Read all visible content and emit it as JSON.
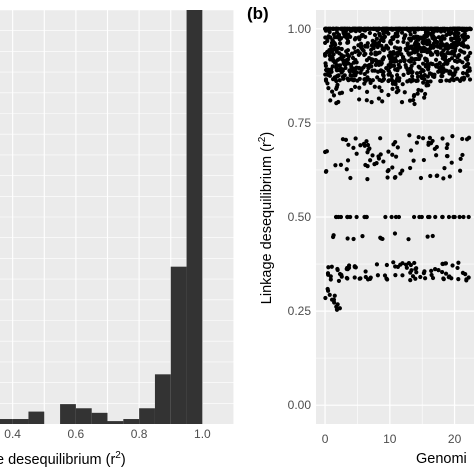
{
  "colors": {
    "panel_bg": "#ebebeb",
    "grid_major": "#ffffff",
    "bar_fill": "#333333",
    "point": "#000000",
    "tick_text": "#4d4d4d"
  },
  "chart_data": [
    {
      "type": "bar",
      "panel": "a",
      "xlabel_visible": "e desequilibrium (r",
      "xlabel_superscript": "2",
      "xlabel_close": ")",
      "x_ticks": [
        "0.4",
        "0.6",
        "0.8",
        "1.0"
      ],
      "x_tick_values": [
        0.4,
        0.6,
        0.8,
        1.0
      ],
      "xlim": [
        0.36,
        1.1
      ],
      "ylim": [
        0,
        1
      ],
      "bin_width": 0.05,
      "bins": [
        {
          "x": 0.35,
          "height": 0.012
        },
        {
          "x": 0.4,
          "height": 0.012
        },
        {
          "x": 0.45,
          "height": 0.03
        },
        {
          "x": 0.5,
          "height": 0.0
        },
        {
          "x": 0.55,
          "height": 0.048
        },
        {
          "x": 0.6,
          "height": 0.038
        },
        {
          "x": 0.65,
          "height": 0.027
        },
        {
          "x": 0.7,
          "height": 0.007
        },
        {
          "x": 0.75,
          "height": 0.012
        },
        {
          "x": 0.8,
          "height": 0.038
        },
        {
          "x": 0.85,
          "height": 0.12
        },
        {
          "x": 0.9,
          "height": 0.38
        },
        {
          "x": 0.95,
          "height": 1.0
        }
      ],
      "grid": true
    },
    {
      "type": "scatter",
      "panel": "b",
      "panel_label": "(b)",
      "ylabel_main": "Linkage desequilibrium (r",
      "ylabel_superscript": "2",
      "ylabel_close": ")",
      "xlabel_visible": "Genomi",
      "y_ticks": [
        "0.00",
        "0.25",
        "0.50",
        "0.75",
        "1.00"
      ],
      "y_tick_values": [
        0,
        0.25,
        0.5,
        0.75,
        1.0
      ],
      "x_ticks": [
        "0",
        "10",
        "20"
      ],
      "x_tick_values": [
        0,
        10,
        20
      ],
      "ylim": [
        -0.05,
        1.05
      ],
      "xlim": [
        -1.4,
        23
      ],
      "grid": true
    }
  ]
}
